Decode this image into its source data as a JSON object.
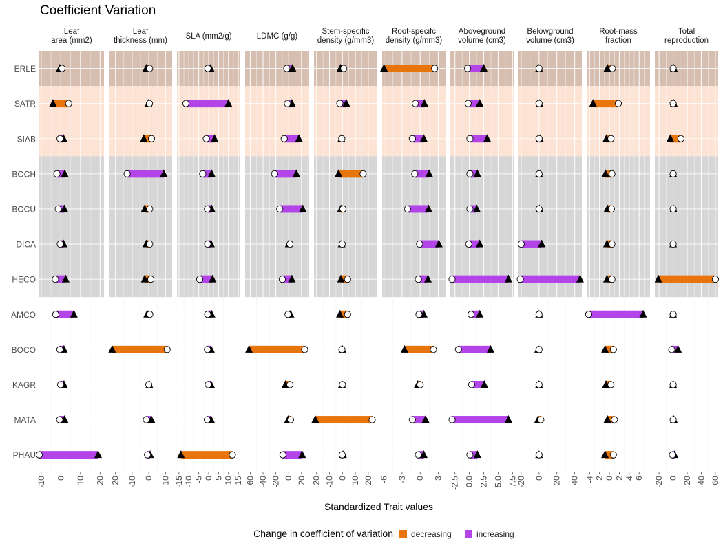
{
  "chart_data": {
    "type": "dumbbell",
    "title": "Coefficient Variation",
    "xlabel": "Standardized Trait values",
    "legend": {
      "title": "Change in coefficient of variation",
      "items": [
        {
          "label": "decreasing",
          "color": "#E8740C"
        },
        {
          "label": "increasing",
          "color": "#B244E8"
        }
      ],
      "placement": "bottom"
    },
    "colors": {
      "decreasing": "#E8740C",
      "increasing": "#B244E8",
      "group_brown": "#D6BFB0",
      "group_peach": "#FDE3D3",
      "group_gray": "#D6D6D6"
    },
    "species": [
      "ERLE",
      "SATR",
      "SIAB",
      "BOCH",
      "BOCU",
      "DICA",
      "HECO",
      "AMCO",
      "BOCO",
      "KAGR",
      "MATA",
      "PHAU"
    ],
    "species_groups": [
      "brown",
      "peach",
      "peach",
      "gray",
      "gray",
      "gray",
      "gray",
      "none",
      "none",
      "none",
      "none",
      "none"
    ],
    "markers": {
      "circle": "first value (open circle)",
      "triangle": "second value (filled triangle)"
    },
    "panels": [
      {
        "label": [
          "Leaf",
          "area (mm2)"
        ],
        "xlim": [
          -11,
          22
        ],
        "ticks": [
          -10,
          0,
          10,
          20
        ],
        "tick_labels": [
          "-10",
          "0",
          "10",
          "20"
        ],
        "circle": [
          0.6,
          4.0,
          -0.4,
          -2.0,
          -1.3,
          -0.3,
          -2.8,
          -2.6,
          -0.5,
          -0.1,
          -0.6,
          -11
        ],
        "triangle": [
          -0.5,
          -4.0,
          1.4,
          2.0,
          1.8,
          1.4,
          2.5,
          6.7,
          1.6,
          1.6,
          1.9,
          19
        ]
      },
      {
        "label": [
          "Leaf",
          "thickness (mm)"
        ],
        "xlim": [
          -24,
          14
        ],
        "ticks": [
          -20,
          -10,
          0,
          10
        ],
        "tick_labels": [
          "-20",
          "-10",
          "0",
          "10"
        ],
        "circle": [
          0.5,
          0.4,
          1.6,
          -13,
          0.5,
          0.5,
          1.2,
          0.6,
          11,
          0.0,
          -1.5,
          -0.8
        ],
        "triangle": [
          -1.5,
          -0.2,
          -3.0,
          9.0,
          -2.5,
          -1.5,
          -2.5,
          -1.0,
          -22,
          0.3,
          1.5,
          0.8
        ]
      },
      {
        "label": [
          "SLA (mm2/g)"
        ],
        "xlim": [
          -16,
          16
        ],
        "ticks": [
          -15,
          -10,
          -5,
          0,
          5,
          10,
          15
        ],
        "tick_labels": [
          "-15",
          "-10",
          "-5",
          "0",
          "5",
          "10",
          "15"
        ],
        "circle": [
          -0.4,
          -11.5,
          -1.2,
          -3.0,
          -0.6,
          -0.5,
          -4.5,
          -0.5,
          -0.6,
          -0.2,
          -0.7,
          12.0
        ],
        "triangle": [
          1.0,
          10.0,
          3.0,
          1.5,
          1.5,
          1.2,
          2.0,
          1.5,
          1.2,
          1.2,
          1.2,
          -14.0
        ]
      },
      {
        "label": [
          "LDMC (g/g)"
        ],
        "xlim": [
          -68,
          32
        ],
        "ticks": [
          -60,
          -40,
          -20,
          0,
          20
        ],
        "tick_labels": [
          "-60",
          "-40",
          "-20",
          "0",
          "20"
        ],
        "circle": [
          -3.0,
          -2.0,
          -7.0,
          -22.0,
          -14.0,
          2.0,
          -10.0,
          -1.0,
          25.0,
          2.0,
          3.0,
          -9.0
        ],
        "triangle": [
          6.0,
          5.0,
          16.0,
          12.0,
          22.0,
          0.0,
          5.0,
          3.0,
          -62.0,
          -5.0,
          -1.0,
          21.0
        ]
      },
      {
        "label": [
          "Stem-specific",
          "density (g/mm3)"
        ],
        "xlim": [
          -22,
          27
        ],
        "ticks": [
          -20,
          -10,
          0,
          10,
          20
        ],
        "tick_labels": [
          "-20",
          "-10",
          "0",
          "10",
          "20"
        ],
        "circle": [
          1.0,
          -2.0,
          -0.5,
          16.0,
          0.4,
          -0.2,
          4.0,
          4.0,
          -0.4,
          0.0,
          23.0,
          -0.2
        ],
        "triangle": [
          -1.5,
          3.0,
          -0.8,
          -3.0,
          -1.2,
          -0.6,
          -1.2,
          -2.0,
          0.0,
          -0.4,
          -21.0,
          0.5
        ]
      },
      {
        "label": [
          "Root-specifc",
          "density (g/mm3)"
        ],
        "xlim": [
          -6.3,
          4.2
        ],
        "ticks": [
          -6,
          -3,
          0,
          3
        ],
        "tick_labels": [
          "-6",
          "-3",
          "0",
          "3"
        ],
        "circle": [
          2.4,
          -0.8,
          -1.3,
          -0.9,
          -2.1,
          -0.1,
          -0.3,
          -0.2,
          2.2,
          0.0,
          -1.3,
          -0.3
        ],
        "triangle": [
          -6.0,
          0.7,
          0.6,
          1.5,
          1.4,
          3.1,
          1.3,
          0.6,
          -2.6,
          -0.4,
          0.9,
          0.6
        ]
      },
      {
        "label": [
          "Aboveground",
          "volume (cm3)"
        ],
        "xlim": [
          -3.3,
          7.7
        ],
        "ticks": [
          -2.5,
          0.0,
          2.5,
          5.0,
          7.5
        ],
        "tick_labels": [
          "-2.5",
          "0.0",
          "2.5",
          "5.0",
          "7.5"
        ],
        "circle": [
          -0.3,
          -0.2,
          0.1,
          0.1,
          0.1,
          -0.1,
          -3.0,
          0.3,
          -1.9,
          0.4,
          -3.0,
          0.1
        ],
        "triangle": [
          2.5,
          1.8,
          3.1,
          1.4,
          1.3,
          1.8,
          6.8,
          1.8,
          3.7,
          2.6,
          6.8,
          1.4
        ]
      },
      {
        "label": [
          "Belowground",
          "volume (cm3)"
        ],
        "xlim": [
          -23,
          48
        ],
        "ticks": [
          -20,
          0,
          20,
          40
        ],
        "tick_labels": [
          "-20",
          "0",
          "20",
          "40"
        ],
        "circle": [
          0.0,
          0.0,
          0.0,
          0.0,
          0.0,
          -20.0,
          -21.0,
          0.0,
          0.0,
          0.0,
          2.0,
          0.0
        ],
        "triangle": [
          0.0,
          0.5,
          1.0,
          0.0,
          0.5,
          3.0,
          46.0,
          0.0,
          -1.0,
          0.0,
          -1.0,
          0.0
        ]
      },
      {
        "label": [
          "Root-mass",
          "fraction"
        ],
        "xlim": [
          -4.6,
          8.2
        ],
        "ticks": [
          -4,
          -2,
          0,
          2,
          4,
          6
        ],
        "tick_labels": [
          "-4",
          "-2",
          "0",
          "2",
          "4",
          "6"
        ],
        "circle": [
          0.6,
          1.8,
          0.3,
          0.5,
          0.4,
          0.5,
          0.5,
          -4.2,
          0.8,
          0.3,
          1.0,
          0.8
        ],
        "triangle": [
          -0.4,
          -3.3,
          -0.6,
          -0.8,
          -0.4,
          -0.5,
          -0.5,
          6.8,
          -0.9,
          -0.7,
          -0.4,
          -0.9
        ]
      },
      {
        "label": [
          "Total",
          "reproduction"
        ],
        "xlim": [
          -26,
          64
        ],
        "ticks": [
          -20,
          0,
          20,
          40,
          60
        ],
        "tick_labels": [
          "-20",
          "0",
          "20",
          "40",
          "60"
        ],
        "circle": [
          0.0,
          0.0,
          11.0,
          0.0,
          0.0,
          0.0,
          60.0,
          0.0,
          -2.0,
          0.0,
          0.0,
          -1.0
        ],
        "triangle": [
          1.0,
          1.0,
          -4.0,
          0.0,
          0.5,
          0.0,
          -21.0,
          0.0,
          7.0,
          0.0,
          1.0,
          2.0
        ]
      }
    ]
  }
}
